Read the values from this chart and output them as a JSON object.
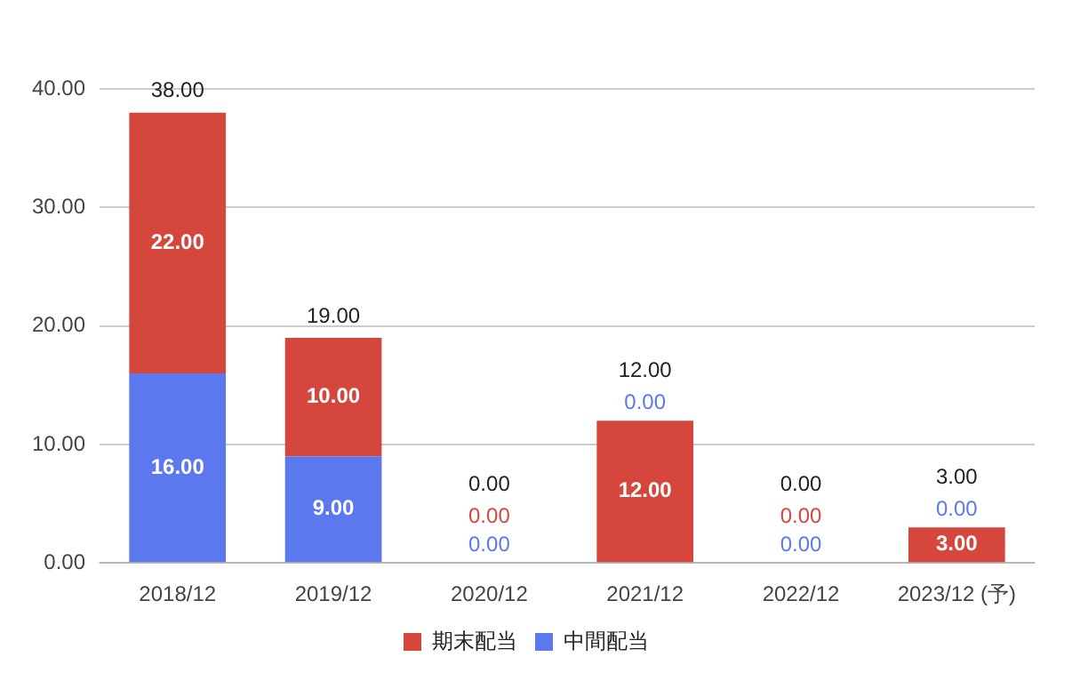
{
  "chart_data": {
    "type": "bar",
    "stacked": true,
    "categories": [
      "2018/12",
      "2019/12",
      "2020/12",
      "2021/12",
      "2022/12",
      "2023/12 (予)"
    ],
    "series": [
      {
        "name": "中間配当",
        "color": "#5b78ef",
        "values": [
          16,
          9,
          0,
          0,
          0,
          0
        ],
        "value_labels": [
          "16.00",
          "9.00",
          "0.00",
          "0.00",
          "0.00",
          "0.00"
        ]
      },
      {
        "name": "期末配当",
        "color": "#d5473d",
        "values": [
          22,
          10,
          0,
          12,
          0,
          3
        ],
        "value_labels": [
          "22.00",
          "10.00",
          "0.00",
          "12.00",
          "0.00",
          "3.00"
        ]
      }
    ],
    "totals": [
      "38.00",
      "19.00",
      "0.00",
      "12.00",
      "0.00",
      "3.00"
    ],
    "ylim": [
      0,
      40
    ],
    "yticks": [
      {
        "value": 0,
        "label": "0.00"
      },
      {
        "value": 10,
        "label": "10.00"
      },
      {
        "value": 20,
        "label": "20.00"
      },
      {
        "value": 30,
        "label": "30.00"
      },
      {
        "value": 40,
        "label": "40.00"
      }
    ],
    "grid": "y",
    "legend": "bottom"
  }
}
